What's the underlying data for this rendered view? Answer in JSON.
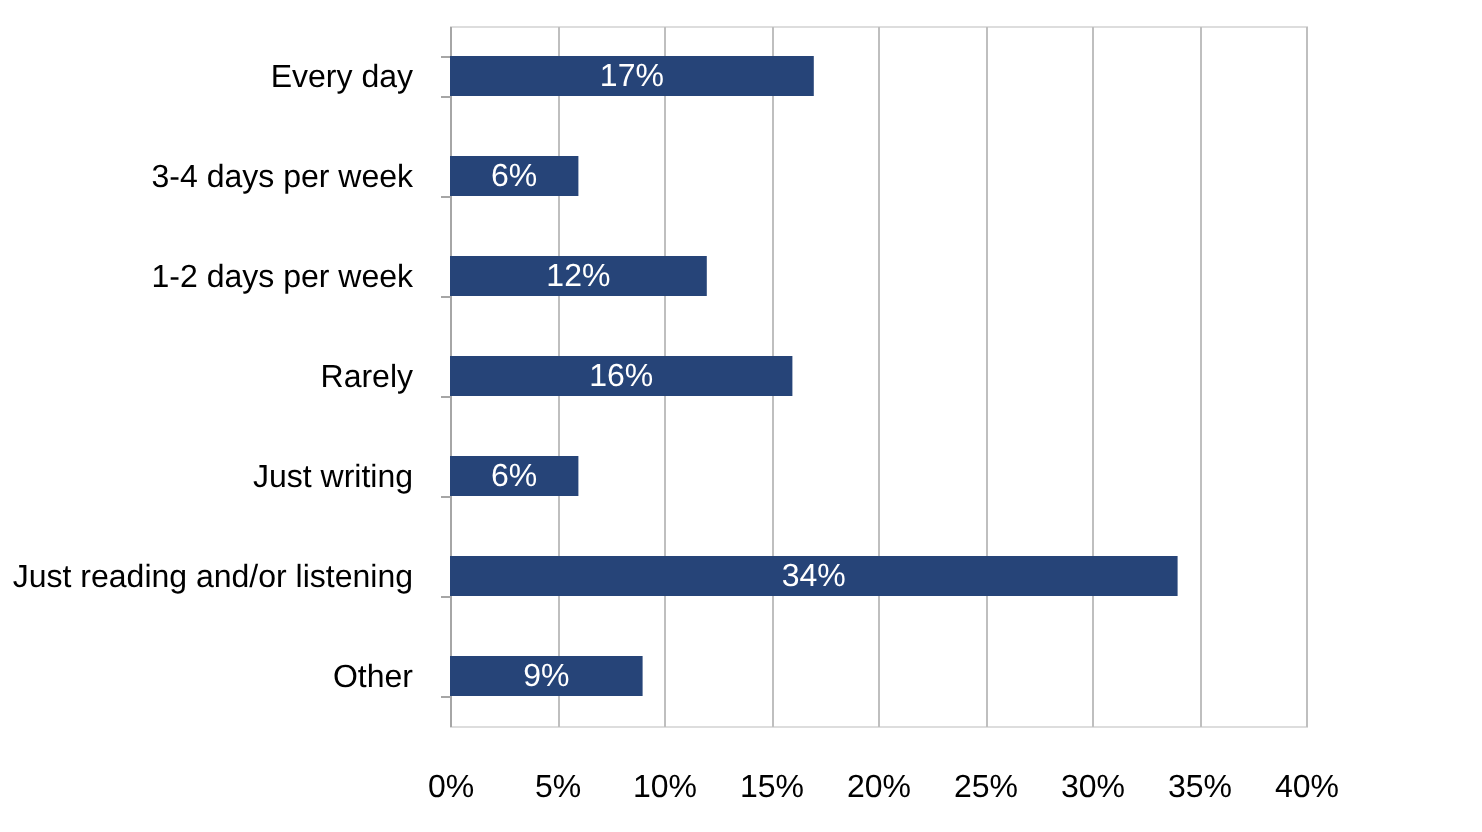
{
  "chart_data": {
    "type": "bar",
    "orientation": "horizontal",
    "categories": [
      "Every day",
      "3-4 days per week",
      "1-2 days per week",
      "Rarely",
      "Just writing",
      "Just reading and/or listening",
      "Other"
    ],
    "values": [
      17,
      6,
      12,
      16,
      6,
      34,
      9
    ],
    "value_labels": [
      "17%",
      "6%",
      "12%",
      "16%",
      "6%",
      "34%",
      "9%"
    ],
    "color": "#264478",
    "xlim": [
      0,
      40
    ],
    "xticks": [
      {
        "value": 0,
        "label": "0%"
      },
      {
        "value": 5,
        "label": "5%"
      },
      {
        "value": 10,
        "label": "10%"
      },
      {
        "value": 15,
        "label": "15%"
      },
      {
        "value": 20,
        "label": "20%"
      },
      {
        "value": 25,
        "label": "25%"
      },
      {
        "value": 30,
        "label": "30%"
      },
      {
        "value": 35,
        "label": "35%"
      },
      {
        "value": 40,
        "label": "40%"
      }
    ],
    "grid": "x"
  }
}
